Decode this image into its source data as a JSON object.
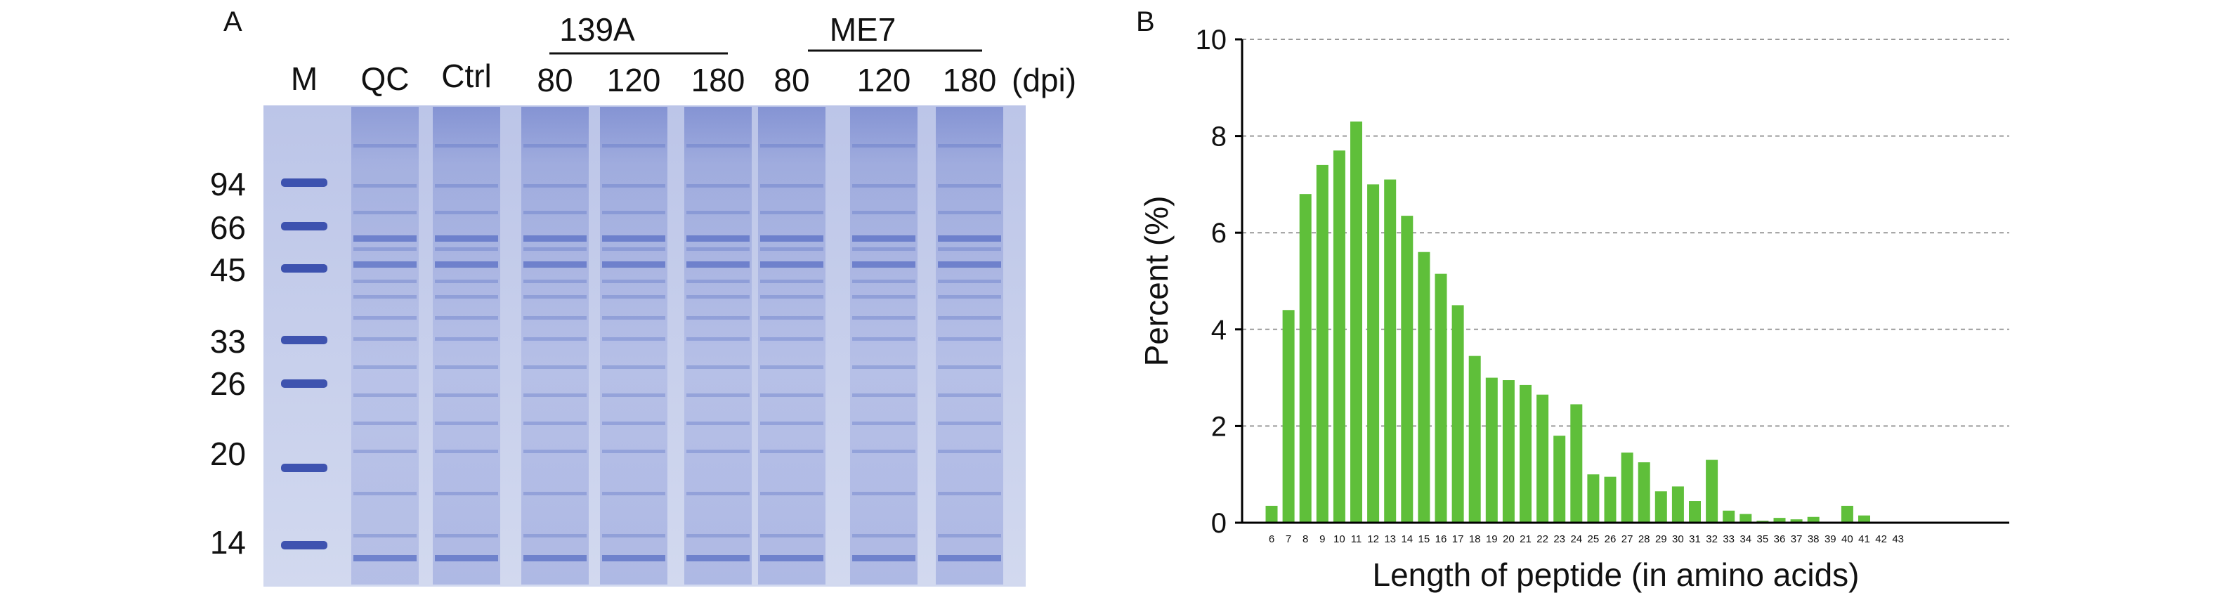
{
  "panel_a": {
    "letter": "A",
    "lanes": [
      "M",
      "QC",
      "Ctrl",
      "80",
      "120",
      "180",
      "80",
      "120",
      "180"
    ],
    "unit_label": "(dpi)",
    "groups": [
      "139A",
      "ME7"
    ],
    "marker_sizes": [
      "94",
      "66",
      "45",
      "33",
      "26",
      "20",
      "14"
    ],
    "colors": {
      "gel_background": "#c9d1ec",
      "band": "#5a6fc4",
      "marker_band": "#2f45a8"
    }
  },
  "panel_b": {
    "letter": "B",
    "colors": {
      "bar": "#5fbf3a",
      "axis": "#000000",
      "grid": "#9a9a9a"
    }
  },
  "chart_data": {
    "type": "bar",
    "title": "",
    "xlabel": "Length of peptide (in amino acids)",
    "ylabel": "Percent (%)",
    "ylim": [
      0,
      10
    ],
    "yticks": [
      0,
      2,
      4,
      6,
      8,
      10
    ],
    "grid": "horizontal dashed",
    "categories": [
      "6",
      "7",
      "8",
      "9",
      "10",
      "11",
      "12",
      "13",
      "14",
      "15",
      "16",
      "17",
      "18",
      "19",
      "20",
      "21",
      "22",
      "23",
      "24",
      "25",
      "26",
      "27",
      "28",
      "29",
      "30",
      "31",
      "32",
      "33",
      "34",
      "35",
      "36",
      "37",
      "38",
      "39",
      "40",
      "41",
      "42",
      "43"
    ],
    "values": [
      0.35,
      4.4,
      6.8,
      7.4,
      7.7,
      8.3,
      7.0,
      7.1,
      6.35,
      5.6,
      5.15,
      4.5,
      3.45,
      3.0,
      2.95,
      2.85,
      2.65,
      1.8,
      2.45,
      1.0,
      0.95,
      1.45,
      1.25,
      0.65,
      0.75,
      0.45,
      1.3,
      0.25,
      0.18,
      0.04,
      0.1,
      0.07,
      0.12,
      0.0,
      0.35,
      0.15,
      0.0,
      0.02
    ]
  }
}
